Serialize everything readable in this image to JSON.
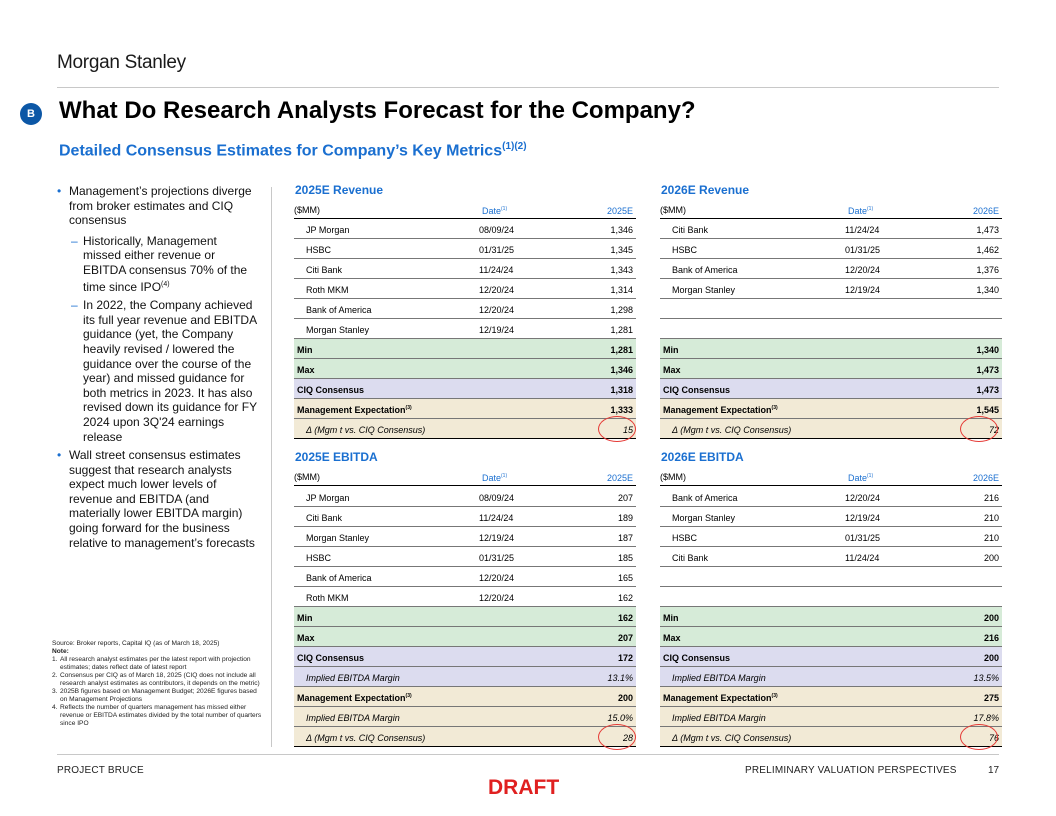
{
  "header": {
    "logo": "Morgan Stanley",
    "badge": "B"
  },
  "title": "What Do Research Analysts Forecast for the Company?",
  "subtitle": "Detailed Consensus Estimates for Company’s Key Metrics",
  "subtitle_sup": "(1)(2)",
  "bullets": {
    "b1": "Management’s projections diverge from broker estimates and CIQ consensus",
    "b1a": "Historically, Management missed either revenue or EBITDA consensus 70% of the time since IPO",
    "b1a_sup": "(4)",
    "b1b": "In 2022, the Company achieved its full year revenue and EBITDA guidance (yet, the Company heavily revised / lowered the guidance over the course of the year) and missed guidance for both metrics in 2023. It has also revised down its guidance for FY 2024 upon 3Q'24 earnings release",
    "b2": "Wall street consensus estimates suggest that research analysts expect much lower levels of revenue and EBITDA (and materially lower EBITDA margin) going forward for the business relative to management’s forecasts"
  },
  "footnotes": {
    "source": "Source: Broker reports, Capital IQ (as of March 18, 2025)",
    "note_label": "Note:",
    "items": [
      {
        "n": "1.",
        "t": "All research analyst estimates per the latest report with projection estimates; dates reflect date of latest report"
      },
      {
        "n": "2.",
        "t": "Consensus per CIQ as of March 18, 2025 (CIQ does not include all research analyst estimates as contributors, it depends on the metric)"
      },
      {
        "n": "3.",
        "t": "2025B figures based on Management Budget; 2026E figures based on Management Projections"
      },
      {
        "n": "4.",
        "t": "Reflects the number of quarters management has missed either revenue or EBITDA estimates divided by the total number of quarters since IPO"
      }
    ]
  },
  "common": {
    "units": "($MM)",
    "date_label": "Date",
    "date_sup": "(1)",
    "min_label": "Min",
    "max_label": "Max",
    "ciq_label": "CIQ Consensus",
    "mgmt_label": "Management Expectation",
    "mgmt_sup": "(3)",
    "delta_label": "Δ (Mgm t vs. CIQ Consensus)",
    "margin_label": "Implied EBITDA Margin"
  },
  "rev25": {
    "title": "2025E Revenue",
    "col": "2025E",
    "rows": [
      {
        "bank": "JP Morgan",
        "date": "08/09/24",
        "value": "1,346"
      },
      {
        "bank": "HSBC",
        "date": "01/31/25",
        "value": "1,345"
      },
      {
        "bank": "Citi Bank",
        "date": "11/24/24",
        "value": "1,343"
      },
      {
        "bank": "Roth MKM",
        "date": "12/20/24",
        "value": "1,314"
      },
      {
        "bank": "Bank of America",
        "date": "12/20/24",
        "value": "1,298"
      },
      {
        "bank": "Morgan Stanley",
        "date": "12/19/24",
        "value": "1,281"
      }
    ],
    "min": "1,281",
    "max": "1,346",
    "ciq": "1,318",
    "mgmt": "1,333",
    "delta": "15"
  },
  "rev26": {
    "title": "2026E Revenue",
    "col": "2026E",
    "rows": [
      {
        "bank": "Citi Bank",
        "date": "11/24/24",
        "value": "1,473"
      },
      {
        "bank": "HSBC",
        "date": "01/31/25",
        "value": "1,462"
      },
      {
        "bank": "Bank of America",
        "date": "12/20/24",
        "value": "1,376"
      },
      {
        "bank": "Morgan Stanley",
        "date": "12/19/24",
        "value": "1,340"
      }
    ],
    "min": "1,340",
    "max": "1,473",
    "ciq": "1,473",
    "mgmt": "1,545",
    "delta": "72"
  },
  "ebitda25": {
    "title": "2025E EBITDA",
    "col": "2025E",
    "rows": [
      {
        "bank": "JP Morgan",
        "date": "08/09/24",
        "value": "207"
      },
      {
        "bank": "Citi Bank",
        "date": "11/24/24",
        "value": "189"
      },
      {
        "bank": "Morgan Stanley",
        "date": "12/19/24",
        "value": "187"
      },
      {
        "bank": "HSBC",
        "date": "01/31/25",
        "value": "185"
      },
      {
        "bank": "Bank of America",
        "date": "12/20/24",
        "value": "165"
      },
      {
        "bank": "Roth MKM",
        "date": "12/20/24",
        "value": "162"
      }
    ],
    "min": "162",
    "max": "207",
    "ciq": "172",
    "ciq_margin": "13.1%",
    "mgmt": "200",
    "mgmt_margin": "15.0%",
    "delta": "28"
  },
  "ebitda26": {
    "title": "2026E EBITDA",
    "col": "2026E",
    "rows": [
      {
        "bank": "Bank of America",
        "date": "12/20/24",
        "value": "216"
      },
      {
        "bank": "Morgan Stanley",
        "date": "12/19/24",
        "value": "210"
      },
      {
        "bank": "HSBC",
        "date": "01/31/25",
        "value": "210"
      },
      {
        "bank": "Citi Bank",
        "date": "11/24/24",
        "value": "200"
      }
    ],
    "min": "200",
    "max": "216",
    "ciq": "200",
    "ciq_margin": "13.5%",
    "mgmt": "275",
    "mgmt_margin": "17.8%",
    "delta": "76"
  },
  "footer": {
    "project": "PROJECT BRUCE",
    "section": "PRELIMINARY VALUATION PERSPECTIVES",
    "page": "17",
    "draft": "DRAFT"
  }
}
